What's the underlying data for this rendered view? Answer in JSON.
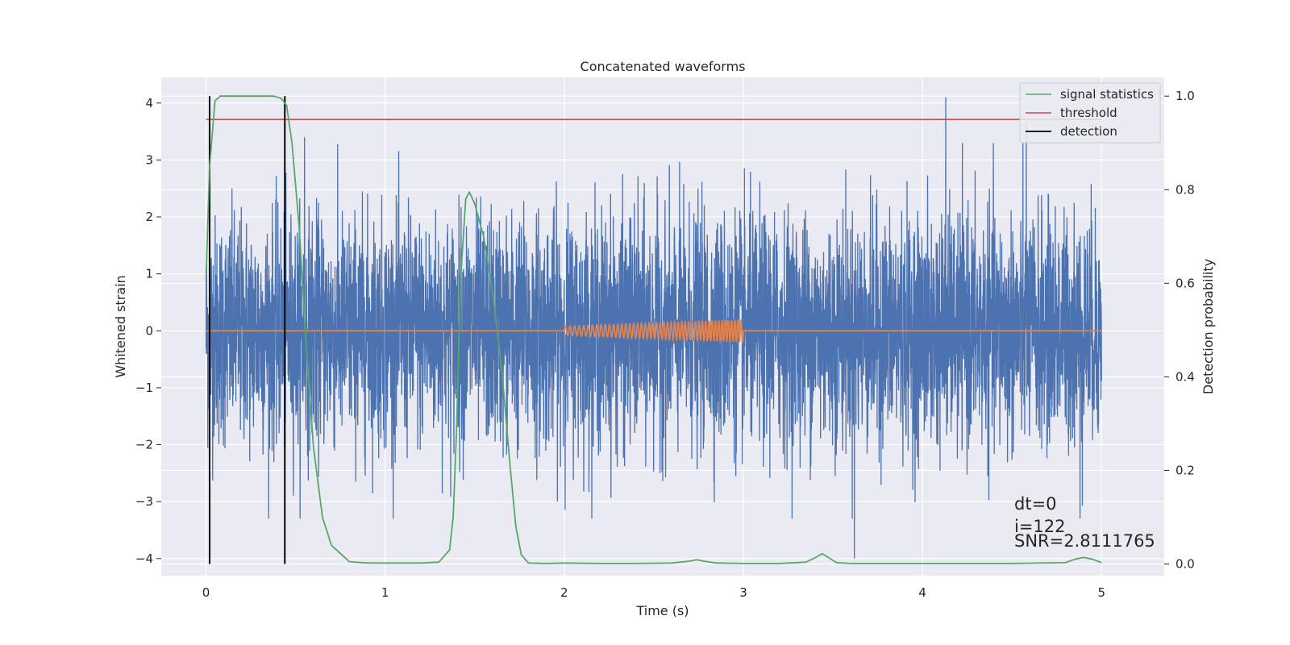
{
  "chart_data": {
    "type": "line",
    "title": "Concatenated waveforms",
    "xlabel": "Time (s)",
    "ylabel": "Whitened strain",
    "y2label": "Detection probability",
    "xlim": [
      -0.25,
      5.35
    ],
    "ylim": [
      -4.3,
      4.45
    ],
    "y2lim": [
      -0.025,
      1.04
    ],
    "xticks": [
      0,
      1,
      2,
      3,
      4,
      5
    ],
    "yticks": [
      -4,
      -3,
      -2,
      -1,
      0,
      1,
      2,
      3,
      4
    ],
    "y2ticks": [
      0.0,
      0.2,
      0.4,
      0.6,
      0.8,
      1.0
    ],
    "xtick_labels": [
      "0",
      "1",
      "2",
      "3",
      "4",
      "5"
    ],
    "ytick_labels": [
      "−4",
      "−3",
      "−2",
      "−1",
      "0",
      "1",
      "2",
      "3",
      "4"
    ],
    "y2tick_labels": [
      "0.0",
      "0.2",
      "0.4",
      "0.6",
      "0.8",
      "1.0"
    ],
    "grid": true,
    "legend_position": "top-right",
    "colors": {
      "background": "#eaeaf2",
      "strain": "#4c72b0",
      "template": "#dd8452",
      "signal_statistics": "#55a868",
      "threshold": "#c44e52",
      "detection": "#000000"
    },
    "series": [
      {
        "name": "signal statistics",
        "axis": "right",
        "x": [
          0.0,
          0.02,
          0.05,
          0.08,
          0.12,
          0.2,
          0.3,
          0.38,
          0.42,
          0.45,
          0.48,
          0.52,
          0.56,
          0.6,
          0.65,
          0.7,
          0.8,
          0.9,
          1.0,
          1.1,
          1.2,
          1.3,
          1.36,
          1.38,
          1.4,
          1.42,
          1.45,
          1.47,
          1.5,
          1.55,
          1.6,
          1.65,
          1.7,
          1.73,
          1.76,
          1.8,
          1.9,
          2.0,
          2.2,
          2.4,
          2.6,
          2.7,
          2.74,
          2.78,
          2.85,
          3.0,
          3.2,
          3.35,
          3.41,
          3.44,
          3.47,
          3.52,
          3.6,
          3.8,
          4.0,
          4.2,
          4.5,
          4.8,
          4.85,
          4.9,
          4.95,
          5.0
        ],
        "values": [
          0.61,
          0.85,
          0.99,
          1.0,
          1.0,
          1.0,
          1.0,
          1.0,
          0.995,
          0.98,
          0.9,
          0.72,
          0.46,
          0.25,
          0.1,
          0.04,
          0.005,
          0.002,
          0.002,
          0.002,
          0.002,
          0.004,
          0.03,
          0.1,
          0.3,
          0.6,
          0.78,
          0.795,
          0.77,
          0.7,
          0.58,
          0.42,
          0.2,
          0.08,
          0.02,
          0.002,
          0.001,
          0.002,
          0.001,
          0.001,
          0.002,
          0.006,
          0.009,
          0.006,
          0.002,
          0.001,
          0.001,
          0.004,
          0.015,
          0.022,
          0.015,
          0.003,
          0.001,
          0.001,
          0.001,
          0.001,
          0.001,
          0.003,
          0.01,
          0.014,
          0.01,
          0.003
        ]
      },
      {
        "name": "threshold",
        "axis": "right",
        "x": [
          0,
          5
        ],
        "values": [
          0.95,
          0.95
        ]
      },
      {
        "name": "detection",
        "axis": "right",
        "x": [
          0.02,
          0.44
        ],
        "values": [
          1.0,
          1.0
        ]
      }
    ],
    "unlabeled_series": [
      {
        "role": "whitened strain noise",
        "axis": "left",
        "x_range": [
          0,
          5
        ],
        "typical_amplitude": 1.0,
        "max_peak": 4.1,
        "max_peak_x": 4.13,
        "min_peak": -4.0,
        "min_peak_x": 3.62
      },
      {
        "role": "injected template",
        "axis": "left",
        "x_range": [
          0,
          5
        ],
        "chirp_x_range": [
          2.0,
          3.0
        ],
        "chirp_amplitude": [
          0.08,
          0.2
        ]
      }
    ],
    "annotations": [
      "dt=0",
      "i=122",
      "SNR=2.8111765"
    ]
  }
}
